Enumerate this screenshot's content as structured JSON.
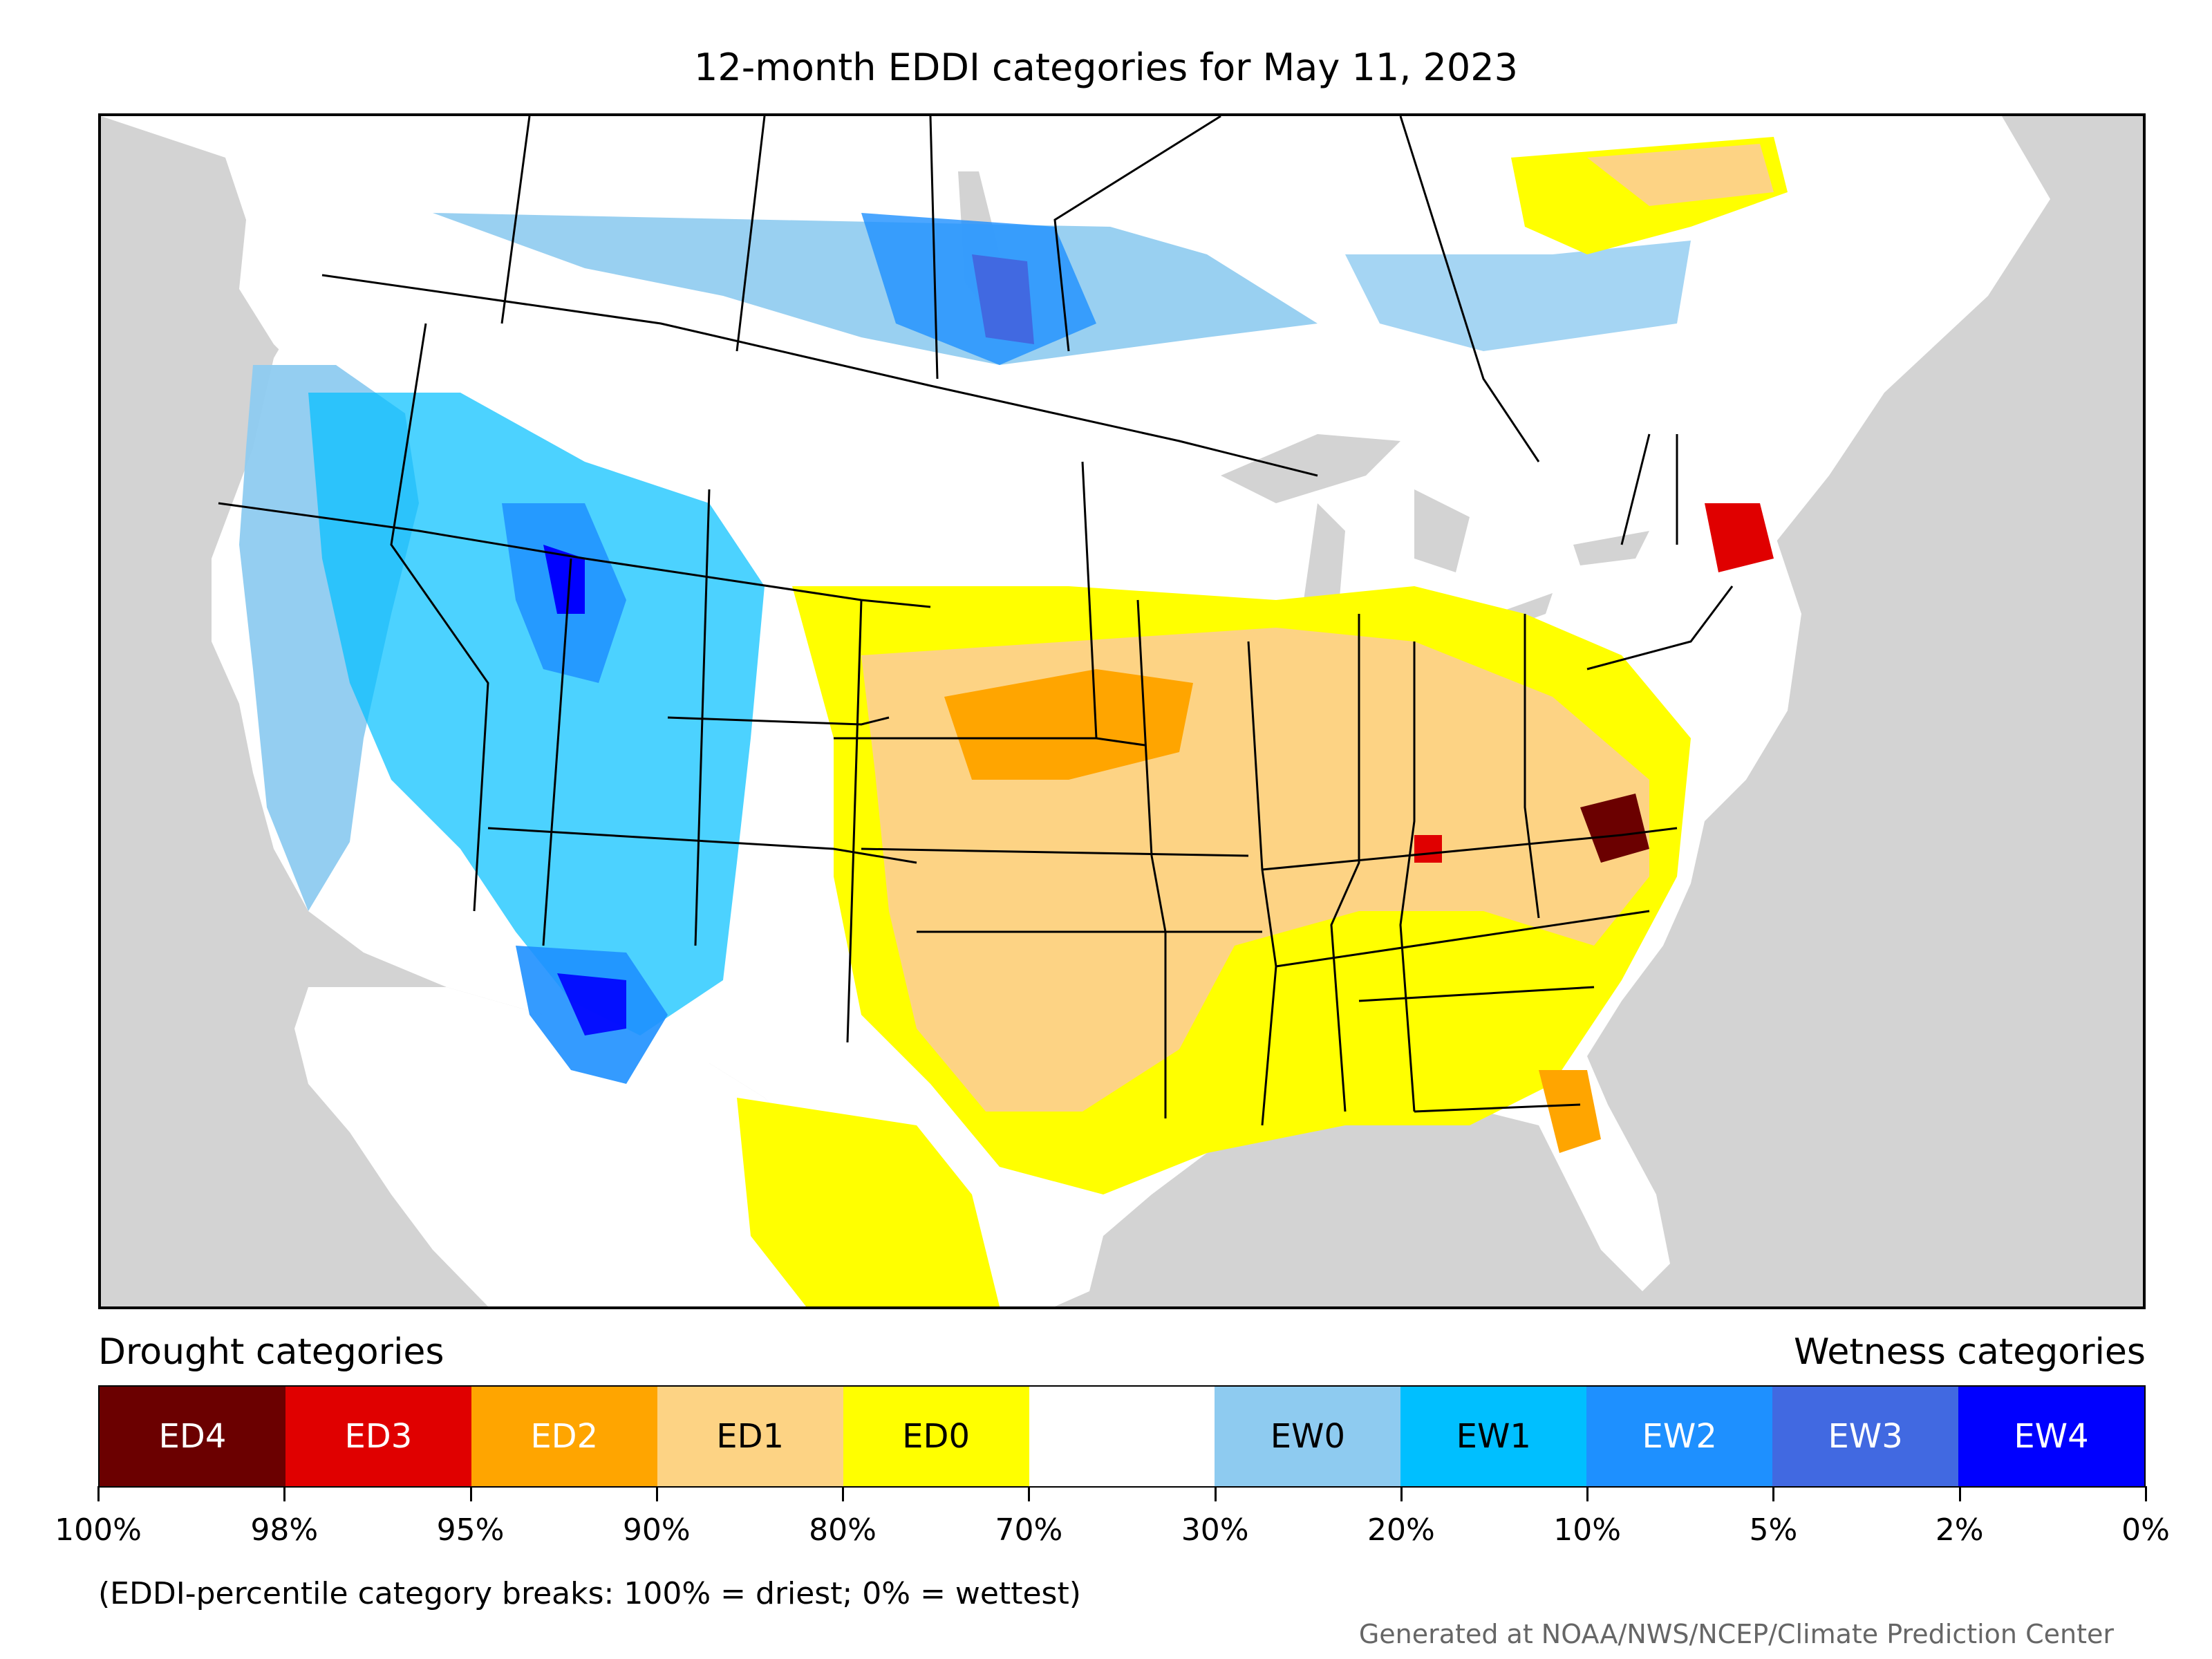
{
  "title": "12-month EDDI categories for May 11, 2023",
  "map": {
    "region": "contiguous-united-states",
    "background_color": "#d3d3d3",
    "land_color": "#ffffff",
    "border_color": "#000000"
  },
  "legend": {
    "left_label": "Drought categories",
    "right_label": "Wetness categories",
    "categories": [
      {
        "code": "ED4",
        "color": "#6b0000",
        "text_color": "#ffffff"
      },
      {
        "code": "ED3",
        "color": "#e00000",
        "text_color": "#ffffff"
      },
      {
        "code": "ED2",
        "color": "#ffa500",
        "text_color": "#ffffff"
      },
      {
        "code": "ED1",
        "color": "#fdd384",
        "text_color": "#000000"
      },
      {
        "code": "ED0",
        "color": "#ffff00",
        "text_color": "#000000"
      },
      {
        "code": "",
        "color": "#ffffff",
        "text_color": "#000000"
      },
      {
        "code": "EW0",
        "color": "#8ecbf0",
        "text_color": "#000000"
      },
      {
        "code": "EW1",
        "color": "#00bfff",
        "text_color": "#000000"
      },
      {
        "code": "EW2",
        "color": "#1e90ff",
        "text_color": "#ffffff"
      },
      {
        "code": "EW3",
        "color": "#4169e1",
        "text_color": "#ffffff"
      },
      {
        "code": "EW4",
        "color": "#0000ff",
        "text_color": "#ffffff"
      }
    ],
    "breaks": [
      "100%",
      "98%",
      "95%",
      "90%",
      "80%",
      "70%",
      "30%",
      "20%",
      "10%",
      "5%",
      "2%",
      "0%"
    ]
  },
  "footnote": "(EDDI-percentile category breaks: 100% = driest; 0% = wettest)",
  "credit": "Generated at NOAA/NWS/NCEP/Climate Prediction Center"
}
